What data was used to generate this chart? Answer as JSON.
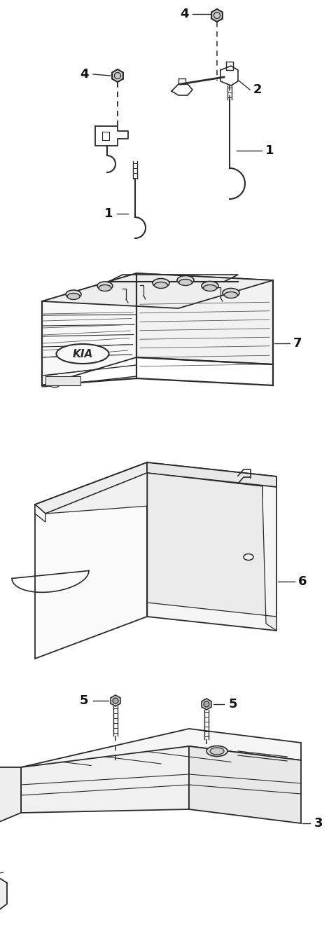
{
  "bg_color": "#ffffff",
  "line_color": "#2a2a2a",
  "label_color": "#111111",
  "fig_width": 4.8,
  "fig_height": 13.23,
  "dpi": 100,
  "lw": 1.3,
  "dlw": 1.1,
  "fs": 13
}
